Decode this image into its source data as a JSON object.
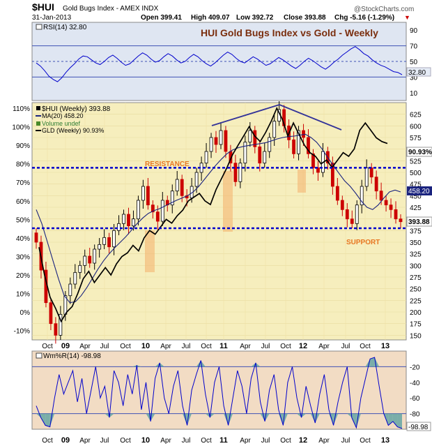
{
  "header": {
    "symbol": "$HUI",
    "name": "Gold Bugs Index - AMEX INDX",
    "date": "31-Jan-2013",
    "open": "Open 399.41",
    "high": "High 409.07",
    "low": "Low 392.72",
    "close": "Close 393.88",
    "change": "Chg -5.16 (-1.29%)",
    "change_arrow": "▼",
    "watermark": "@StockCharts.com"
  },
  "colors": {
    "panel_bg_top": "#dfe6f2",
    "panel_bg_main": "#f6eebd",
    "panel_bg_bottom": "#f2dcc4",
    "candle_up": "#000000",
    "candle_down": "#cc0000",
    "ma_line": "#1a237e",
    "gld_line": "#000000",
    "support_line": "#0000cc",
    "annotation": "#7a2e0e",
    "label_orange": "#e87722",
    "rsi_line": "#0000cc",
    "wmr_fill": "#5ba3a3"
  },
  "chart_data": [
    {
      "type": "line",
      "panel": "rsi",
      "legend": "RSI(14) 32.80",
      "title": "HUI Gold Bugs Index vs Gold - Weekly",
      "ylim": [
        0,
        100
      ],
      "reference_lines": [
        70,
        50,
        30
      ],
      "tick_labels": [
        "90",
        "70",
        "50",
        "30",
        "10"
      ],
      "last_value_label": "32.80",
      "values": [
        48,
        44,
        38,
        31,
        27,
        24,
        29,
        36,
        42,
        47,
        53,
        57,
        56,
        52,
        48,
        46,
        50,
        55,
        58,
        54,
        49,
        45,
        47,
        52,
        57,
        61,
        58,
        53,
        49,
        51,
        56,
        60,
        57,
        52,
        48,
        50,
        55,
        59,
        56,
        51,
        47,
        44,
        48,
        53,
        58,
        62,
        59,
        54,
        50,
        48,
        52,
        56,
        53,
        49,
        45,
        47,
        51,
        55,
        52,
        48,
        44,
        41,
        45,
        50,
        54,
        51,
        47,
        43,
        40,
        44,
        49,
        53,
        58,
        62,
        66,
        69,
        65,
        60,
        57,
        52,
        48,
        45,
        43,
        40,
        37,
        36,
        33
      ]
    },
    {
      "type": "candlestick",
      "panel": "price",
      "legend": [
        "$HUI (Weekly) 393.88",
        "MA(20) 458.20",
        "Volume undef",
        "GLD (Weekly) 90.93%"
      ],
      "x_tick_labels": [
        "Oct",
        "09",
        "Apr",
        "Jul",
        "Oct",
        "10",
        "Apr",
        "Jul",
        "Oct",
        "11",
        "Apr",
        "Jul",
        "Oct",
        "12",
        "Apr",
        "Jul",
        "Oct",
        "13"
      ],
      "y_right_ticks": [
        "625",
        "600",
        "575",
        "550",
        "525",
        "500",
        "475",
        "450",
        "425",
        "400",
        "375",
        "350",
        "325",
        "300",
        "275",
        "250",
        "225",
        "200",
        "175",
        "150"
      ],
      "y_right_range": [
        140,
        650
      ],
      "y_left_ticks": [
        "110%",
        "100%",
        "90%",
        "80%",
        "70%",
        "60%",
        "50%",
        "40%",
        "30%",
        "20%",
        "10%",
        "0%",
        "-10%"
      ],
      "y_left_range": [
        -15,
        113
      ],
      "hui_close": [
        350,
        290,
        220,
        175,
        150,
        195,
        235,
        260,
        285,
        300,
        320,
        305,
        335,
        345,
        360,
        340,
        375,
        390,
        410,
        385,
        400,
        440,
        470,
        430,
        415,
        395,
        440,
        430,
        460,
        485,
        450,
        445,
        470,
        500,
        520,
        545,
        575,
        560,
        590,
        545,
        520,
        480,
        520,
        565,
        590,
        555,
        520,
        545,
        575,
        610,
        635,
        600,
        570,
        540,
        590,
        575,
        540,
        510,
        500,
        545,
        520,
        470,
        440,
        420,
        400,
        390,
        430,
        470,
        510,
        490,
        460,
        440,
        430,
        420,
        400,
        394
      ],
      "ma20": [
        420,
        390,
        350,
        310,
        270,
        235,
        220,
        222,
        235,
        252,
        272,
        292,
        310,
        325,
        338,
        350,
        362,
        376,
        390,
        402,
        412,
        418,
        422,
        428,
        434,
        440,
        445,
        450,
        458,
        470,
        485,
        500,
        515,
        528,
        540,
        548,
        553,
        556,
        558,
        560,
        562,
        564,
        568,
        572,
        575,
        577,
        578,
        580,
        582,
        575,
        565,
        550,
        532,
        515,
        498,
        482,
        470,
        455,
        438,
        425,
        420,
        430,
        445,
        458,
        462,
        458
      ],
      "gld_pct": [
        35,
        20,
        8,
        2,
        -5,
        0,
        3,
        10,
        18,
        22,
        16,
        20,
        24,
        20,
        26,
        30,
        32,
        36,
        33,
        40,
        44,
        42,
        46,
        50,
        48,
        52,
        55,
        60,
        62,
        64,
        60,
        58,
        66,
        72,
        78,
        85,
        90,
        95,
        100,
        95,
        92,
        97,
        103,
        110,
        104,
        95,
        102,
        96,
        90,
        86,
        84,
        80,
        82,
        78,
        82,
        86,
        84,
        88,
        98,
        102,
        98,
        94,
        92,
        90.93
      ],
      "annotations": [
        "RESISTANCE",
        "SUPPORT"
      ],
      "resistance_level": 510,
      "support_level": 380,
      "last_labels": [
        "90.93%",
        "458.20",
        "393.88"
      ]
    },
    {
      "type": "line",
      "panel": "williams_r",
      "legend": "Wm%R(14) -98.98",
      "ylim": [
        -100,
        0
      ],
      "reference_lines": [
        -20,
        -80
      ],
      "tick_labels": [
        "-20",
        "-40",
        "-60",
        "-80"
      ],
      "last_value_label": "-98.98",
      "values": [
        -70,
        -85,
        -95,
        -97,
        -60,
        -30,
        -55,
        -40,
        -25,
        -65,
        -35,
        -80,
        -50,
        -20,
        -60,
        -45,
        -85,
        -25,
        -40,
        -70,
        -30,
        -55,
        -18,
        -75,
        -40,
        -90,
        -35,
        -15,
        -60,
        -80,
        -45,
        -25,
        -70,
        -95,
        -50,
        -30,
        -12,
        -55,
        -85,
        -40,
        -20,
        -70,
        -95,
        -60,
        -25,
        -45,
        -80,
        -35,
        -15,
        -65,
        -90,
        -50,
        -30,
        -75,
        -95,
        -40,
        -20,
        -60,
        -85,
        -45,
        -70,
        -92,
        -55,
        -30,
        -75,
        -95,
        -65,
        -40,
        -20,
        -85,
        -98,
        -60,
        -35,
        -10,
        -8,
        -45,
        -80,
        -95,
        -90,
        -97,
        -99
      ]
    }
  ]
}
